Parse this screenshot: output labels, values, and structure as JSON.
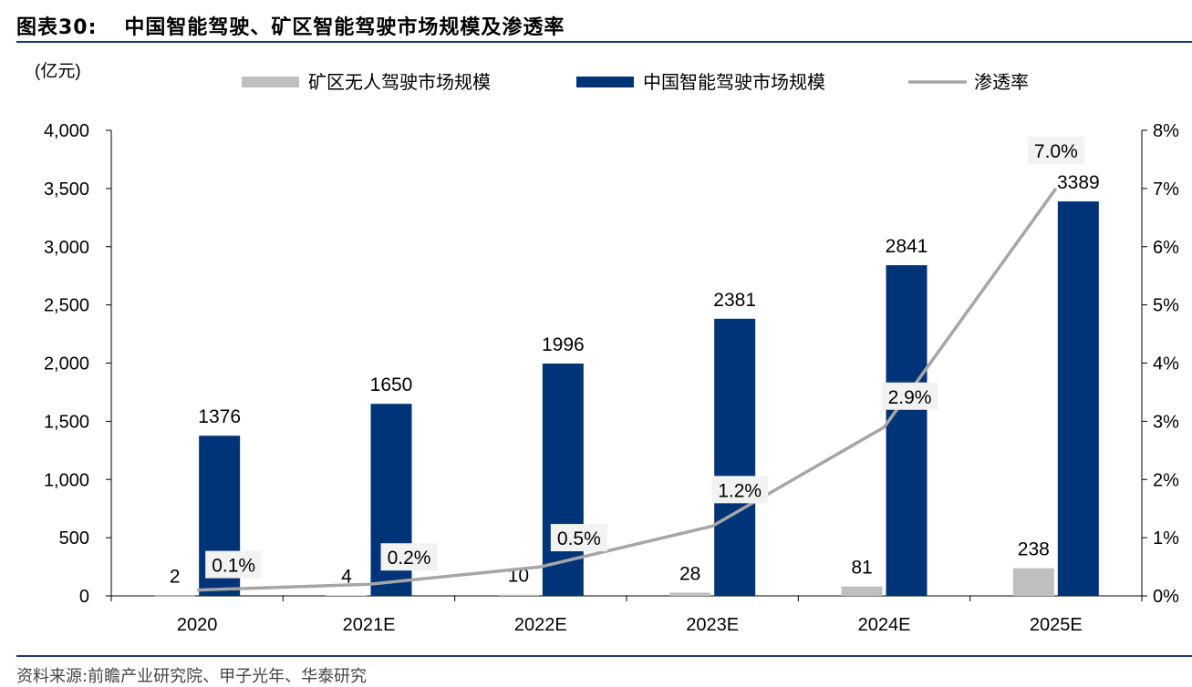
{
  "figure": {
    "label": "图表30:",
    "title": "中国智能驾驶、矿区智能驾驶市场规模及渗透率",
    "source": "资料来源:前瞻产业研究院、甲子光年、华泰研究"
  },
  "colors": {
    "mining": "#bfbfbf",
    "china": "#003478",
    "rate": "#a6a6a6",
    "rule": "#1f3b73",
    "label_box": "#f2f2f2"
  },
  "chart_data": {
    "type": "bar",
    "categories": [
      "2020",
      "2021E",
      "2022E",
      "2023E",
      "2024E",
      "2025E"
    ],
    "y_unit_label": "(亿元)",
    "ylim": [
      0,
      4000
    ],
    "y_ticks": [
      "0",
      "500",
      "1,000",
      "1,500",
      "2,000",
      "2,500",
      "3,000",
      "3,500",
      "4,000"
    ],
    "y2lim": [
      0,
      0.08
    ],
    "y2_ticks": [
      "0%",
      "1%",
      "2%",
      "3%",
      "4%",
      "5%",
      "6%",
      "7%",
      "8%"
    ],
    "legend_position": "top",
    "series": [
      {
        "name": "矿区无人驾驶市场规模",
        "type": "bar",
        "axis": "left",
        "values": [
          2,
          4,
          10,
          28,
          81,
          238
        ],
        "labels": [
          "2",
          "4",
          "10",
          "28",
          "81",
          "238"
        ]
      },
      {
        "name": "中国智能驾驶市场规模",
        "type": "bar",
        "axis": "left",
        "values": [
          1376,
          1650,
          1996,
          2381,
          2841,
          3389
        ],
        "labels": [
          "1376",
          "1650",
          "1996",
          "2381",
          "2841",
          "3389"
        ]
      },
      {
        "name": "渗透率",
        "type": "line",
        "axis": "right",
        "values": [
          0.001,
          0.002,
          0.005,
          0.012,
          0.029,
          0.07
        ],
        "labels": [
          "0.1%",
          "0.2%",
          "0.5%",
          "1.2%",
          "2.9%",
          "7.0%"
        ]
      }
    ]
  }
}
